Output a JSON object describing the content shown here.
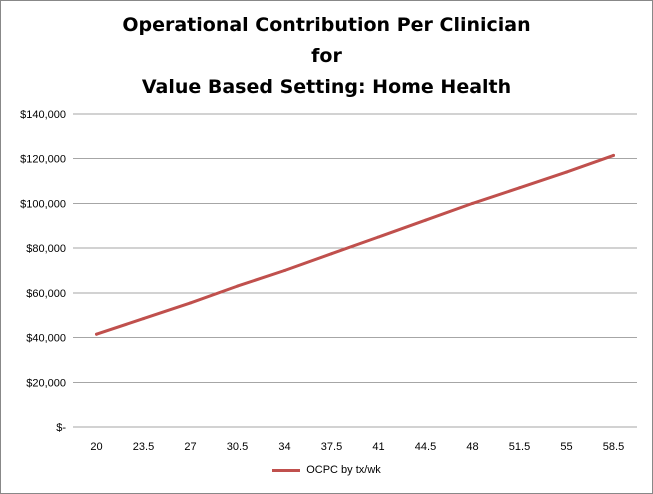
{
  "chart_data": {
    "type": "line",
    "title_lines": [
      "Operational Contribution Per Clinician",
      "for",
      "Value Based Setting: Home Health"
    ],
    "categories": [
      "20",
      "23.5",
      "27",
      "30.5",
      "34",
      "37.5",
      "41",
      "44.5",
      "48",
      "51.5",
      "55",
      "58.5"
    ],
    "y_tick_labels": [
      "$-",
      "$20,000",
      "$40,000",
      "$60,000",
      "$80,000",
      "$100,000",
      "$120,000",
      "$140,000"
    ],
    "y_tick_values": [
      0,
      20000,
      40000,
      60000,
      80000,
      100000,
      120000,
      140000
    ],
    "ylim": [
      0,
      140000
    ],
    "series": [
      {
        "name": "OCPC by tx/wk",
        "color": "#c0504d",
        "values": [
          41500,
          48500,
          55500,
          63000,
          70000,
          77500,
          85000,
          92500,
          100000,
          107000,
          114000,
          121500
        ]
      }
    ],
    "grid": "horizontal",
    "legend_position": "bottom"
  }
}
